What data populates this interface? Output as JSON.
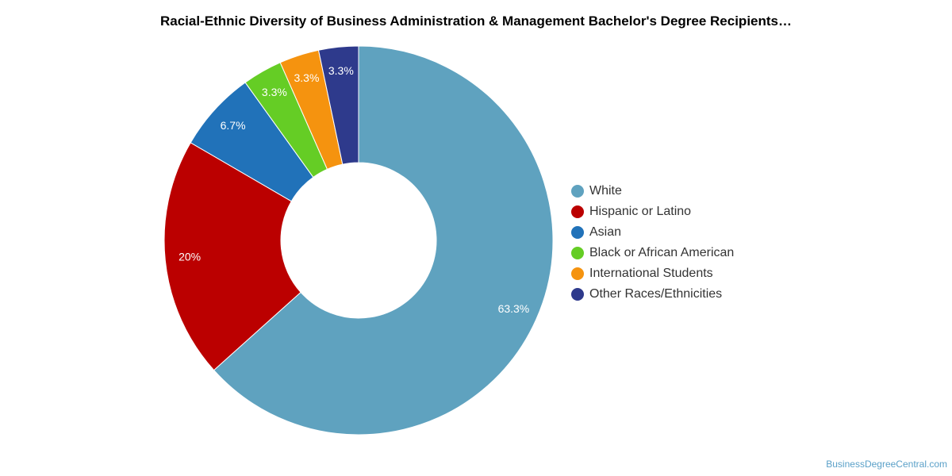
{
  "chart_data": {
    "type": "pie",
    "subtype": "donut",
    "title": "Racial-Ethnic Diversity of Business Administration & Management Bachelor's Degree Recipients…",
    "slices": [
      {
        "label": "White",
        "value": 63.3,
        "display": "63.3%",
        "color": "#5fa2bf"
      },
      {
        "label": "Hispanic or Latino",
        "value": 20,
        "display": "20%",
        "color": "#bb0000"
      },
      {
        "label": "Asian",
        "value": 6.7,
        "display": "6.7%",
        "color": "#2172b9"
      },
      {
        "label": "Black or African American",
        "value": 3.3,
        "display": "3.3%",
        "color": "#65cd25"
      },
      {
        "label": "International Students",
        "value": 3.3,
        "display": "3.3%",
        "color": "#f5930f"
      },
      {
        "label": "Other Races/Ethnicities",
        "value": 3.3,
        "display": "3.3%",
        "color": "#2e3a8c"
      }
    ],
    "legend_position": "right"
  },
  "credit": "BusinessDegreeCentral.com"
}
